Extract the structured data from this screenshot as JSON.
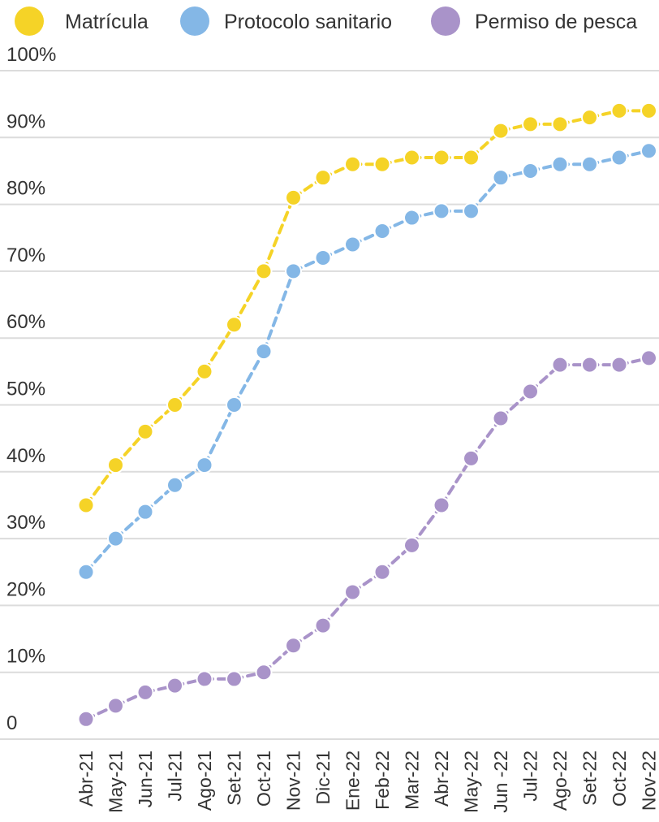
{
  "chart_data": {
    "type": "line",
    "categories": [
      "Abr-21",
      "May-21",
      "Jun-21",
      "Jul-21",
      "Ago-21",
      "Set-21",
      "Oct-21",
      "Nov-21",
      "Dic-21",
      "Ene-22",
      "Feb-22",
      "Mar-22",
      "Abr-22",
      "May-22",
      "Jun -22",
      "Jul-22",
      "Ago-22",
      "Set-22",
      "Oct-22",
      "Nov-22"
    ],
    "y_ticks": [
      "0",
      "10%",
      "20%",
      "30%",
      "40%",
      "50%",
      "60%",
      "70%",
      "80%",
      "90%",
      "100%"
    ],
    "ylim": [
      0,
      100
    ],
    "grid": true,
    "legend_position": "top",
    "series": [
      {
        "name": "Matrícula",
        "color": "#f5d327",
        "values": [
          35,
          41,
          46,
          50,
          55,
          62,
          70,
          81,
          84,
          86,
          86,
          87,
          87,
          87,
          91,
          92,
          92,
          93,
          94,
          94
        ]
      },
      {
        "name": "Protocolo sanitario",
        "color": "#84b7e6",
        "values": [
          25,
          30,
          34,
          38,
          41,
          50,
          58,
          70,
          72,
          74,
          76,
          78,
          79,
          79,
          84,
          85,
          86,
          86,
          87,
          88
        ]
      },
      {
        "name": "Permiso de pesca",
        "color": "#a993c9",
        "values": [
          3,
          5,
          7,
          8,
          9,
          9,
          10,
          14,
          17,
          22,
          25,
          29,
          35,
          42,
          48,
          52,
          56,
          56,
          56,
          57
        ]
      }
    ]
  }
}
